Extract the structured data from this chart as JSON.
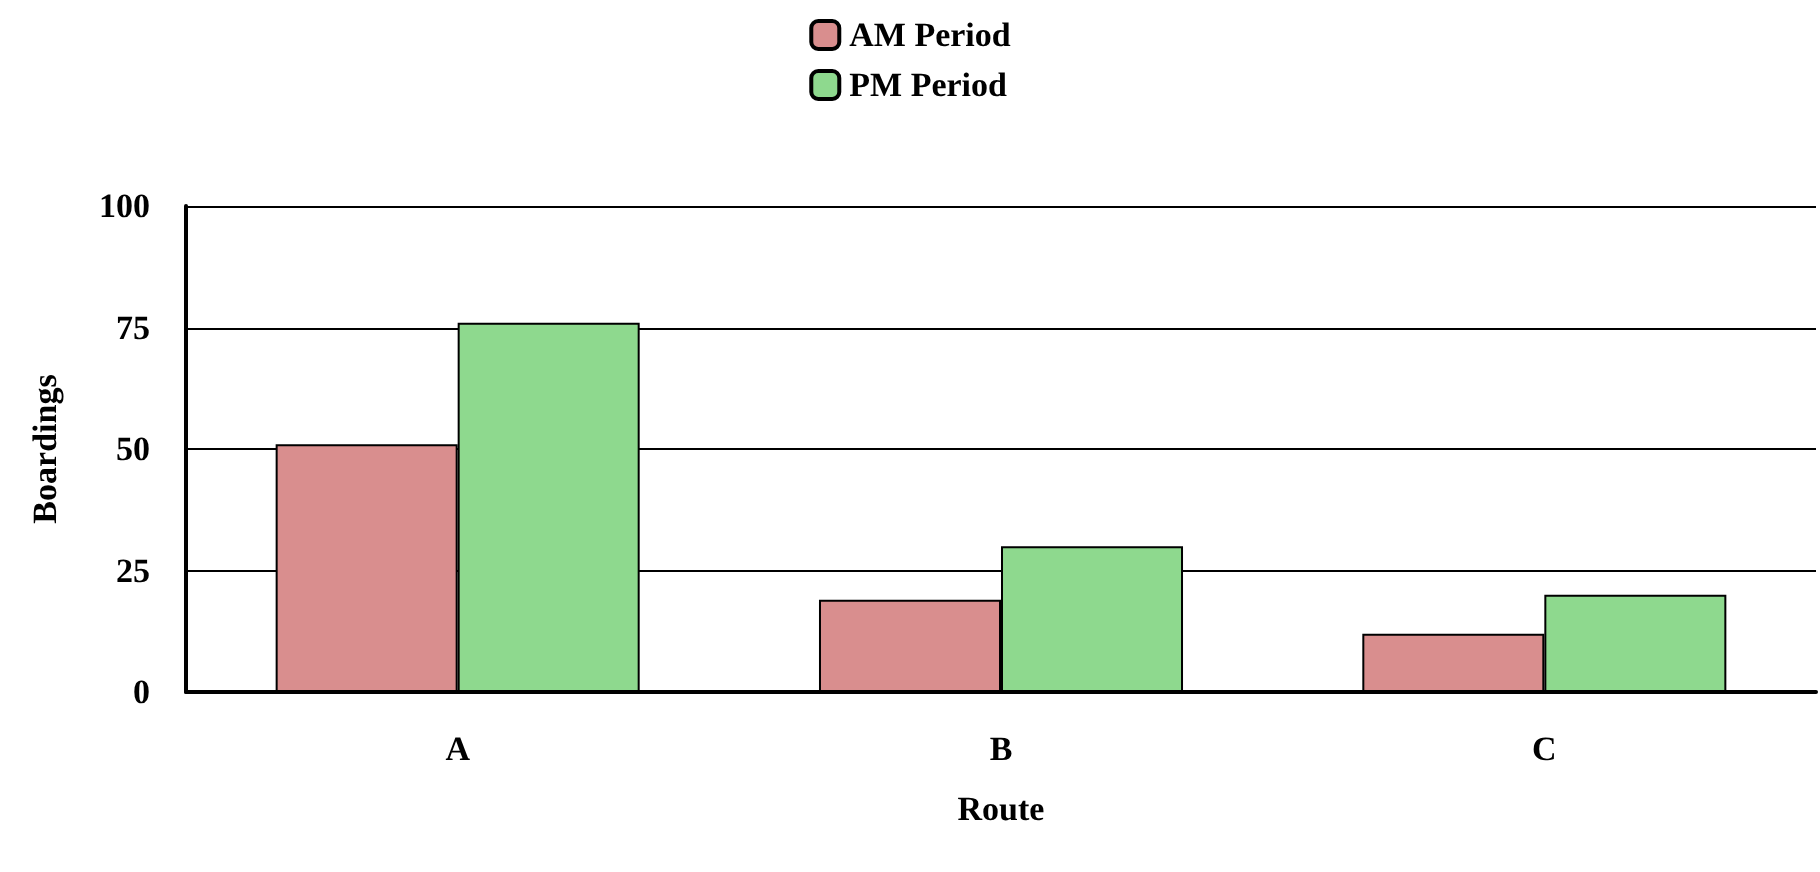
{
  "chart_data": {
    "type": "bar",
    "xlabel": "Route",
    "ylabel": "Boardings",
    "categories": [
      "A",
      "B",
      "C"
    ],
    "series": [
      {
        "name": "AM Period",
        "color": "#d98e8e",
        "values": [
          51,
          19,
          12
        ]
      },
      {
        "name": "PM Period",
        "color": "#8ed98e",
        "values": [
          76,
          30,
          20
        ]
      }
    ],
    "ylim": [
      0,
      100
    ],
    "yticks": [
      0,
      25,
      50,
      75,
      100
    ],
    "grid": "y",
    "legend": "top"
  }
}
